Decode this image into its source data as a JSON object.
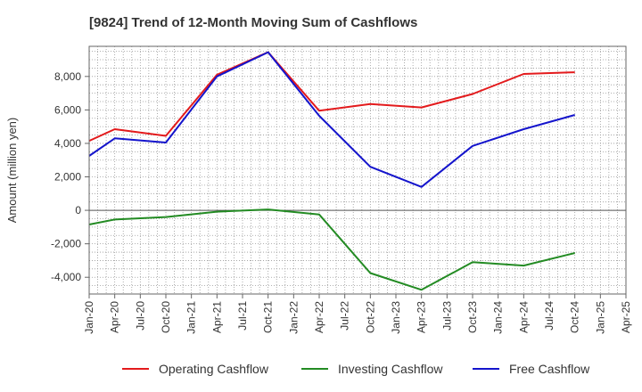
{
  "chart_data": {
    "type": "line",
    "title": "[9824]  Trend of 12-Month Moving Sum of Cashflows",
    "ylabel": "Amount (million yen)",
    "xlabel": "",
    "ylim": [
      -5000,
      9800
    ],
    "yticks": [
      -4000,
      -2000,
      0,
      2000,
      4000,
      6000,
      8000
    ],
    "ytick_labels": [
      "-4,000",
      "-2,000",
      "0",
      "2,000",
      "4,000",
      "6,000",
      "8,000"
    ],
    "categories": [
      "Jan-20",
      "Apr-20",
      "Jul-20",
      "Oct-20",
      "Jan-21",
      "Apr-21",
      "Jul-21",
      "Oct-21",
      "Jan-22",
      "Apr-22",
      "Jul-22",
      "Oct-22",
      "Jan-23",
      "Apr-23",
      "Jul-23",
      "Oct-23",
      "Jan-24",
      "Apr-24",
      "Jul-24",
      "Oct-24",
      "Jan-25",
      "Apr-25"
    ],
    "grid": true,
    "legend_position": "bottom",
    "series": [
      {
        "name": "Operating Cashflow",
        "color": "#e31a1c",
        "points": [
          {
            "x": "Jan-20",
            "y": 4150
          },
          {
            "x": "Apr-20",
            "y": 4850
          },
          {
            "x": "Oct-20",
            "y": 4450
          },
          {
            "x": "Apr-21",
            "y": 8100
          },
          {
            "x": "Oct-21",
            "y": 9450
          },
          {
            "x": "Apr-22",
            "y": 5950
          },
          {
            "x": "Oct-22",
            "y": 6350
          },
          {
            "x": "Apr-23",
            "y": 6150
          },
          {
            "x": "Oct-23",
            "y": 6950
          },
          {
            "x": "Apr-24",
            "y": 8150
          },
          {
            "x": "Oct-24",
            "y": 8250
          }
        ]
      },
      {
        "name": "Investing Cashflow",
        "color": "#238b23",
        "points": [
          {
            "x": "Jan-20",
            "y": -850
          },
          {
            "x": "Apr-20",
            "y": -550
          },
          {
            "x": "Oct-20",
            "y": -400
          },
          {
            "x": "Apr-21",
            "y": -80
          },
          {
            "x": "Oct-21",
            "y": 50
          },
          {
            "x": "Apr-22",
            "y": -250
          },
          {
            "x": "Oct-22",
            "y": -3750
          },
          {
            "x": "Apr-23",
            "y": -4750
          },
          {
            "x": "Oct-23",
            "y": -3100
          },
          {
            "x": "Apr-24",
            "y": -3300
          },
          {
            "x": "Oct-24",
            "y": -2550
          }
        ]
      },
      {
        "name": "Free Cashflow",
        "color": "#1414cc",
        "points": [
          {
            "x": "Jan-20",
            "y": 3250
          },
          {
            "x": "Apr-20",
            "y": 4300
          },
          {
            "x": "Oct-20",
            "y": 4050
          },
          {
            "x": "Apr-21",
            "y": 8000
          },
          {
            "x": "Oct-21",
            "y": 9450
          },
          {
            "x": "Apr-22",
            "y": 5650
          },
          {
            "x": "Oct-22",
            "y": 2600
          },
          {
            "x": "Apr-23",
            "y": 1400
          },
          {
            "x": "Oct-23",
            "y": 3850
          },
          {
            "x": "Apr-24",
            "y": 4850
          },
          {
            "x": "Oct-24",
            "y": 5700
          }
        ]
      }
    ]
  }
}
